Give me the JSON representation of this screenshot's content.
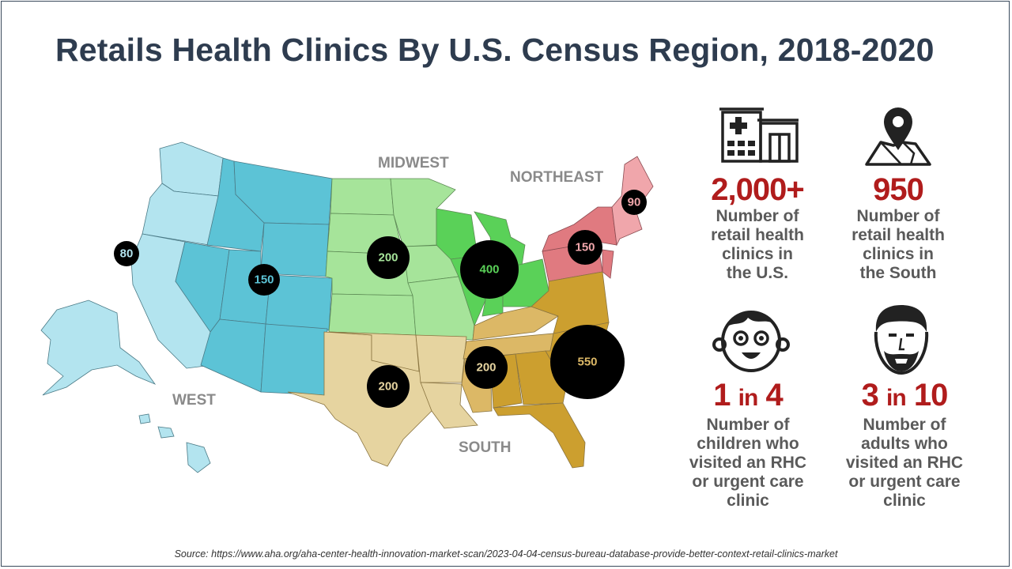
{
  "title": "Retails Health Clinics By U.S. Census Region, 2018-2020",
  "regions": {
    "west": "WEST",
    "midwest": "MIDWEST",
    "northeast": "NORTHEAST",
    "south": "SOUTH"
  },
  "bubbles": {
    "west_coast": "80",
    "mountain": "150",
    "plains": "200",
    "great_lakes": "400",
    "northeast": "90",
    "mid_atlantic": "150",
    "texas": "200",
    "south_central": "200",
    "southeast": "550"
  },
  "stats": {
    "total": {
      "value": "2,000+",
      "desc": [
        "Number of",
        "retail health",
        "clinics in",
        "the U.S."
      ]
    },
    "south": {
      "value": "950",
      "desc": [
        "Number of",
        "retail health",
        "clinics in",
        "the South"
      ]
    },
    "children": {
      "value_a": "1",
      "value_mid": "in",
      "value_b": "4",
      "desc": [
        "Number of",
        "children who",
        "visited an RHC",
        "or urgent care",
        "clinic"
      ]
    },
    "adults": {
      "value_a": "3",
      "value_mid": "in",
      "value_b": "10",
      "desc": [
        "Number of",
        "adults who",
        "visited an RHC",
        "or urgent care",
        "clinic"
      ]
    }
  },
  "icons": [
    "hospital-icon",
    "map-pin-icon",
    "child-face-icon",
    "adult-face-icon"
  ],
  "colors": {
    "west_light": "#b3e4ef",
    "west_dark": "#5cc3d6",
    "midwest_light": "#a6e49a",
    "midwest_dark": "#5ad158",
    "northeast_light": "#f0a6ab",
    "northeast_dark": "#e07a80",
    "south_light": "#e6d4a0",
    "south_mid": "#dcb866",
    "south_dark": "#cc9f2f",
    "stat_red": "#b01c1c",
    "title": "#2e3c4f"
  },
  "source": "Source: https://www.aha.org/aha-center-health-innovation-market-scan/2023-04-04-census-bureau-database-provide-better-context-retail-clinics-market"
}
